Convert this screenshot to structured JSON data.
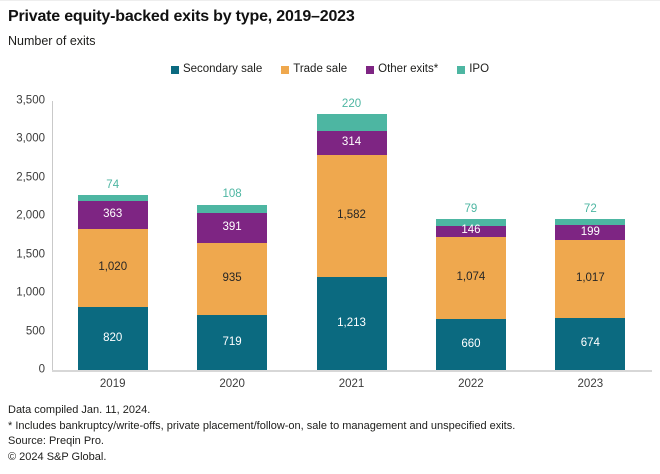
{
  "header": {
    "title": "Private equity-backed exits by type, 2019–2023",
    "subtitle": "Number of exits"
  },
  "chart_data": {
    "type": "bar",
    "stacked": true,
    "title": "Private equity-backed exits by type, 2019–2023",
    "ylabel": "Number of exits",
    "categories": [
      "2019",
      "2020",
      "2021",
      "2022",
      "2023"
    ],
    "series": [
      {
        "name": "Secondary sale",
        "color": "#0b6a80",
        "label_position": "inside",
        "label_color": "#ffffff",
        "values": [
          820,
          719,
          1213,
          660,
          674
        ]
      },
      {
        "name": "Trade sale",
        "color": "#efa84e",
        "label_position": "inside",
        "label_color": "#262626",
        "values": [
          1020,
          935,
          1582,
          1074,
          1017
        ]
      },
      {
        "name": "Other exits*",
        "color": "#7e2583",
        "label_position": "inside",
        "label_color": "#ffffff",
        "values": [
          363,
          391,
          314,
          146,
          199
        ]
      },
      {
        "name": "IPO",
        "color": "#4db6a2",
        "label_position": "above",
        "label_color": "#4db6a2",
        "values": [
          74,
          108,
          220,
          79,
          72
        ]
      }
    ],
    "ylim": [
      0,
      3500
    ],
    "ytick_values": [
      0,
      500,
      1000,
      1500,
      2000,
      2500,
      3000,
      3500
    ],
    "ytick_labels": [
      "0",
      "500",
      "1,000",
      "1,500",
      "2,000",
      "2,500",
      "3,000",
      "3,500"
    ],
    "legend_position": "top",
    "grid": false
  },
  "footer": {
    "lines": [
      "Data compiled Jan. 11, 2024.",
      "* Includes bankruptcy/write-offs, private placement/follow-on, sale to management and unspecified exits.",
      "Source: Preqin Pro.",
      "© 2024 S&P Global."
    ]
  }
}
